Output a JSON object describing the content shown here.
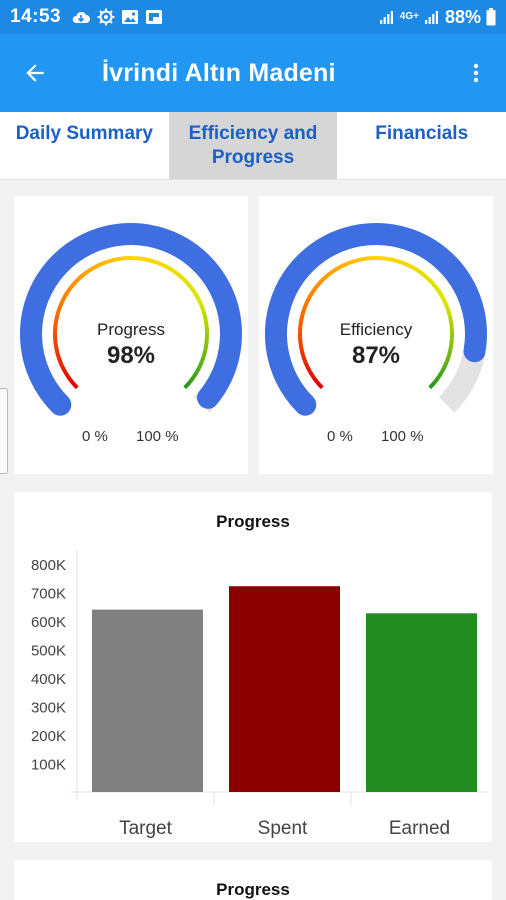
{
  "status_bar": {
    "time": "14:53",
    "left_icons": [
      "cloud-icon",
      "settings-icon",
      "image-icon",
      "flipboard-icon"
    ],
    "network": "4G+",
    "battery_percent": "88%"
  },
  "app_bar": {
    "title": "İvrindi Altın Madeni",
    "back_icon": "arrow-back-icon",
    "menu_icon": "more-vert-icon"
  },
  "tabs": [
    {
      "label": "Daily Summary",
      "active": false
    },
    {
      "label": "Efficiency and Progress",
      "active": true
    },
    {
      "label": "Financials",
      "active": false
    }
  ],
  "gauges": [
    {
      "label": "Progress",
      "value_text": "98%",
      "value": 98,
      "min_label": "0 %",
      "max_label": "100 %"
    },
    {
      "label": "Efficiency",
      "value_text": "87%",
      "value": 87,
      "min_label": "0 %",
      "max_label": "100 %"
    }
  ],
  "colors": {
    "status_bar": "#1e88e5",
    "app_bar": "#2196f3",
    "tab_text": "#1c5fc7",
    "gauge_fill": "#3f6ee0",
    "gauge_track": "#e3e3e3"
  },
  "chart_data": {
    "type": "bar",
    "title": "Progress",
    "categories": [
      "Target",
      "Spent",
      "Earned"
    ],
    "values": [
      640000,
      722000,
      627000
    ],
    "colors": [
      "#808080",
      "#8b0000",
      "#228b22"
    ],
    "yticks": [
      "100K",
      "200K",
      "300K",
      "400K",
      "500K",
      "600K",
      "700K",
      "800K"
    ],
    "ylim": [
      0,
      800000
    ],
    "grid": false,
    "legend": false
  },
  "second_chart": {
    "title": "Progress"
  }
}
